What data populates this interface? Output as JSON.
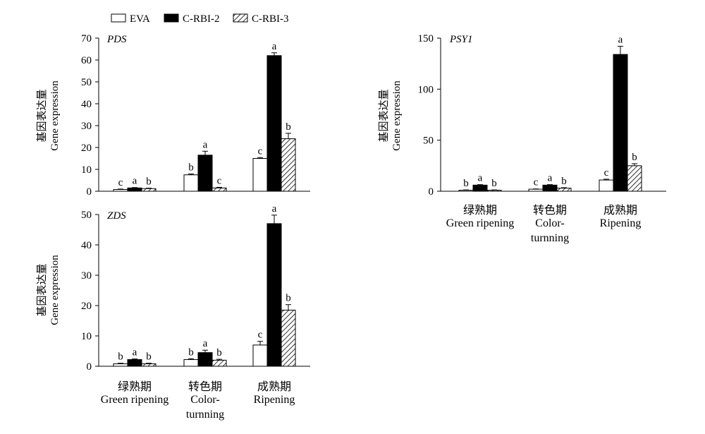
{
  "chart_data": {
    "legend": [
      "EVA",
      "C-RBI-2",
      "C-RBI-3"
    ],
    "categories": [
      {
        "zh": "绿熟期",
        "en": [
          "Green ripening"
        ]
      },
      {
        "zh": "转色期",
        "en": [
          "Color-",
          "turnning"
        ]
      },
      {
        "zh": "成熟期",
        "en": [
          "Ripening"
        ]
      }
    ],
    "ylabel_zh": "基因表达量",
    "ylabel_en": "Gene expression",
    "colors": {
      "EVA": "#ffffff",
      "C-RBI-2": "#000000",
      "C-RBI-3": "hatched"
    },
    "panels": [
      {
        "type": "bar",
        "title": "PDS",
        "ylim": [
          0,
          70
        ],
        "yticks": [
          0,
          10,
          20,
          30,
          40,
          50,
          60,
          70
        ],
        "series": [
          {
            "name": "EVA",
            "values": [
              0.8,
              7.5,
              15.0
            ],
            "errors": [
              0.2,
              0.4,
              0.4
            ],
            "letters": [
              "c",
              "b",
              "c"
            ]
          },
          {
            "name": "C-RBI-2",
            "values": [
              1.5,
              16.5,
              62.0
            ],
            "errors": [
              0.2,
              1.8,
              1.3
            ],
            "letters": [
              "a",
              "a",
              "a"
            ]
          },
          {
            "name": "C-RBI-3",
            "values": [
              1.2,
              1.5,
              24.0
            ],
            "errors": [
              0.2,
              0.3,
              2.5
            ],
            "letters": [
              "b",
              "c",
              "b"
            ]
          }
        ]
      },
      {
        "type": "bar",
        "title": "ZDS",
        "ylim": [
          0,
          50
        ],
        "yticks": [
          0,
          10,
          20,
          30,
          40,
          50
        ],
        "series": [
          {
            "name": "EVA",
            "values": [
              0.8,
              2.2,
              7.0
            ],
            "errors": [
              0.2,
              0.3,
              1.2
            ],
            "letters": [
              "b",
              "b",
              "c"
            ]
          },
          {
            "name": "C-RBI-2",
            "values": [
              2.2,
              4.5,
              47.0
            ],
            "errors": [
              0.2,
              0.8,
              2.8
            ],
            "letters": [
              "a",
              "a",
              "a"
            ]
          },
          {
            "name": "C-RBI-3",
            "values": [
              0.8,
              2.0,
              18.5
            ],
            "errors": [
              0.2,
              0.3,
              1.8
            ],
            "letters": [
              "b",
              "b",
              "b"
            ]
          }
        ]
      },
      {
        "type": "bar",
        "title": "PSY1",
        "ylim": [
          0,
          150
        ],
        "yticks": [
          0,
          50,
          100,
          150
        ],
        "series": [
          {
            "name": "EVA",
            "values": [
              1.0,
              2.0,
              11.0
            ],
            "errors": [
              0.3,
              0.3,
              0.8
            ],
            "letters": [
              "b",
              "c",
              "c"
            ]
          },
          {
            "name": "C-RBI-2",
            "values": [
              6.0,
              6.0,
              134.0
            ],
            "errors": [
              0.5,
              0.5,
              8.0
            ],
            "letters": [
              "a",
              "a",
              "a"
            ]
          },
          {
            "name": "C-RBI-3",
            "values": [
              1.0,
              3.0,
              25.0
            ],
            "errors": [
              0.3,
              0.5,
              2.0
            ],
            "letters": [
              "b",
              "b",
              "b"
            ]
          }
        ]
      }
    ]
  }
}
